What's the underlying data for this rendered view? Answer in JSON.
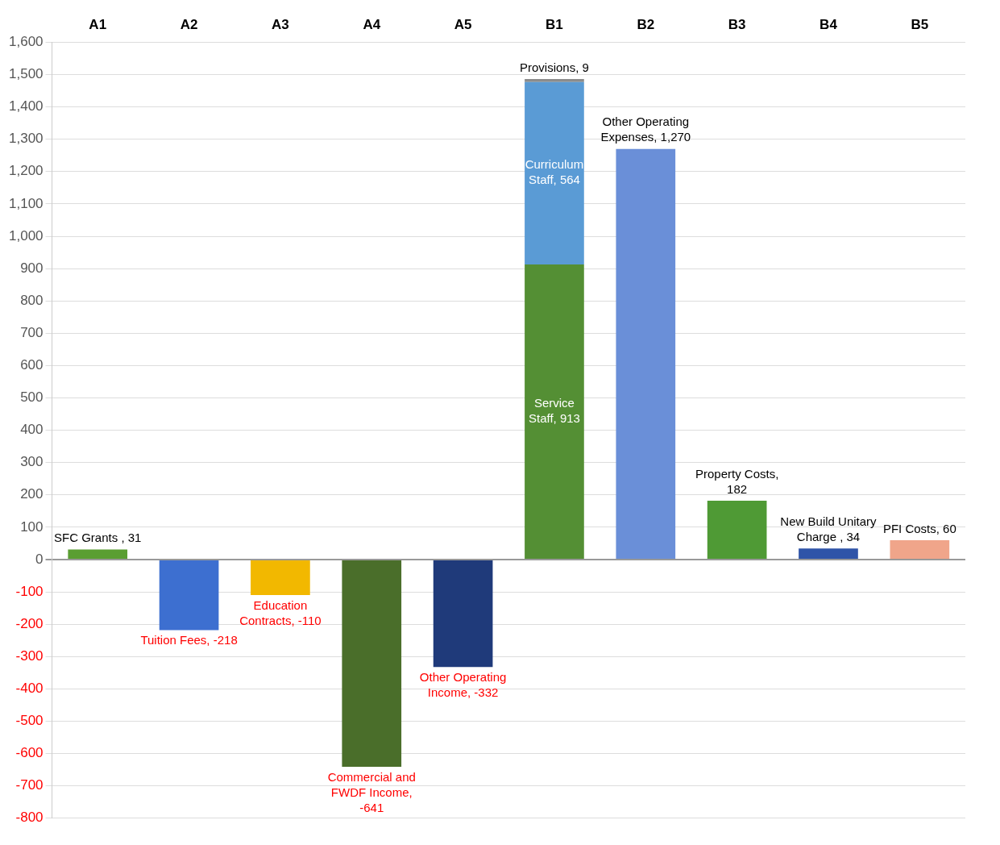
{
  "chart_data": {
    "type": "bar",
    "stacked": true,
    "categories": [
      "A1",
      "A2",
      "A3",
      "A4",
      "A5",
      "B1",
      "B2",
      "B3",
      "B4",
      "B5"
    ],
    "series": [
      {
        "color": "#5a9e32",
        "values": [
          31,
          null,
          null,
          null,
          null,
          null,
          null,
          null,
          null,
          null
        ],
        "value_labels": [
          "SFC Grants , 31",
          null,
          null,
          null,
          null,
          null,
          null,
          null,
          null,
          null
        ]
      },
      {
        "color": "#3d6fd0",
        "values": [
          null,
          -218,
          null,
          null,
          null,
          null,
          null,
          null,
          null,
          null
        ],
        "value_labels": [
          null,
          "Tuition Fees, -218",
          null,
          null,
          null,
          null,
          null,
          null,
          null,
          null
        ]
      },
      {
        "color": "#f2b800",
        "values": [
          null,
          null,
          -110,
          null,
          null,
          null,
          null,
          null,
          null,
          null
        ],
        "value_labels": [
          null,
          null,
          "Education Contracts, -110",
          null,
          null,
          null,
          null,
          null,
          null,
          null
        ]
      },
      {
        "color": "#4a6e2a",
        "values": [
          null,
          null,
          null,
          -641,
          null,
          null,
          null,
          null,
          null,
          null
        ],
        "value_labels": [
          null,
          null,
          null,
          "Commercial and FWDF Income, -641",
          null,
          null,
          null,
          null,
          null,
          null
        ]
      },
      {
        "color": "#1f3a7a",
        "values": [
          null,
          null,
          null,
          null,
          -332,
          null,
          null,
          null,
          null,
          null
        ],
        "value_labels": [
          null,
          null,
          null,
          null,
          "Other Operating Income, -332",
          null,
          null,
          null,
          null,
          null
        ]
      },
      {
        "color": "#548f34",
        "values": [
          null,
          null,
          null,
          null,
          null,
          913,
          null,
          null,
          null,
          null
        ],
        "value_labels": [
          null,
          null,
          null,
          null,
          null,
          "Service Staff, 913",
          null,
          null,
          null,
          null
        ]
      },
      {
        "color": "#5a9bd5",
        "values": [
          null,
          null,
          null,
          null,
          null,
          564,
          null,
          null,
          null,
          null
        ],
        "value_labels": [
          null,
          null,
          null,
          null,
          null,
          "Curriculum Staff, 564",
          null,
          null,
          null,
          null
        ]
      },
      {
        "color": "#8c8c8c",
        "values": [
          null,
          null,
          null,
          null,
          null,
          9,
          null,
          null,
          null,
          null
        ],
        "value_labels": [
          null,
          null,
          null,
          null,
          null,
          "Provisions, 9",
          null,
          null,
          null,
          null
        ]
      },
      {
        "color": "#6a8fd8",
        "values": [
          null,
          null,
          null,
          null,
          null,
          null,
          1270,
          null,
          null,
          null
        ],
        "value_labels": [
          null,
          null,
          null,
          null,
          null,
          null,
          "Other Operating Expenses, 1,270",
          null,
          null,
          null
        ]
      },
      {
        "color": "#4f9a35",
        "values": [
          null,
          null,
          null,
          null,
          null,
          null,
          null,
          182,
          null,
          null
        ],
        "value_labels": [
          null,
          null,
          null,
          null,
          null,
          null,
          null,
          "Property Costs, 182",
          null,
          null
        ]
      },
      {
        "color": "#2f54a8",
        "values": [
          null,
          null,
          null,
          null,
          null,
          null,
          null,
          null,
          34,
          null
        ],
        "value_labels": [
          null,
          null,
          null,
          null,
          null,
          null,
          null,
          null,
          "New Build Unitary Charge , 34",
          null
        ]
      },
      {
        "color": "#f0a58a",
        "values": [
          null,
          null,
          null,
          null,
          null,
          null,
          null,
          null,
          null,
          60
        ],
        "value_labels": [
          null,
          null,
          null,
          null,
          null,
          null,
          null,
          null,
          null,
          "PFI Costs, 60"
        ]
      }
    ],
    "ylim": [
      -800,
      1600
    ],
    "yticks": [
      -800,
      -700,
      -600,
      -500,
      -400,
      -300,
      -200,
      -100,
      0,
      100,
      200,
      300,
      400,
      500,
      600,
      700,
      800,
      900,
      {
        "value": 1000,
        "label": "1,000"
      },
      {
        "value": 1100,
        "label": "1,100"
      },
      {
        "value": 1200,
        "label": "1,200"
      },
      {
        "value": 1300,
        "label": "1,300"
      },
      {
        "value": 1400,
        "label": "1,400"
      },
      {
        "value": 1500,
        "label": "1,500"
      },
      {
        "value": 1600,
        "label": "1,600"
      }
    ],
    "grid": "y",
    "legend": false
  }
}
